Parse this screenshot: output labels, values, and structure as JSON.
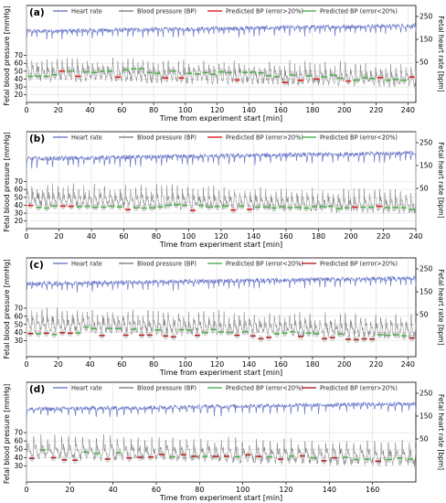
{
  "figure": {
    "legend": {
      "heart_rate": "Heart rate",
      "blood_pressure": "Blood pressure (BP)",
      "pred_gt20": "Predicted BP (error>20%)",
      "pred_lt20": "Predicted BP (error<20%)"
    },
    "colors": {
      "heart_rate": "#6a79c8",
      "blood_pressure": "#7f7f7f",
      "pred_gt20": "#e41a1c",
      "pred_lt20": "#4daf4a",
      "pred_dark_red": "#b22222",
      "error_box": "#c8c8c8"
    }
  },
  "chart_data": [
    {
      "panel_label": "(a)",
      "type": "line",
      "xlabel": "Time from experiment start [min]",
      "ylabel_left": "Fetal blood pressure [mmHg]",
      "ylabel_right": "Fetal heart rate [bpm]",
      "xlim": [
        0,
        245
      ],
      "xticks": [
        0,
        20,
        40,
        60,
        80,
        100,
        120,
        140,
        160,
        180,
        200,
        220,
        240
      ],
      "yticks_left": [
        20,
        30,
        40,
        50,
        60,
        70
      ],
      "yticks_right": [
        50,
        150,
        250
      ],
      "legend_order": [
        "heart_rate",
        "blood_pressure",
        "pred_gt20",
        "pred_lt20"
      ],
      "grid": true,
      "series": [
        {
          "name": "Heart rate",
          "approx_range": [
            150,
            260
          ]
        },
        {
          "name": "Blood pressure (BP)",
          "approx_range": [
            25,
            70
          ]
        },
        {
          "name": "Predicted BP (error>20%)",
          "approx_values": [
            50,
            45,
            42,
            40,
            38,
            35,
            40,
            38,
            42
          ]
        },
        {
          "name": "Predicted BP (error<20%)",
          "approx_values": [
            45,
            50,
            52,
            49,
            48,
            47,
            44,
            43,
            40,
            38
          ]
        }
      ]
    },
    {
      "panel_label": "(b)",
      "type": "line",
      "xlabel": "Time from experiment start [min]",
      "ylabel_left": "Fetal blood pressure [mmHg]",
      "ylabel_right": "Fetal heart rate [bpm]",
      "xlim": [
        0,
        240
      ],
      "xticks": [
        0,
        20,
        40,
        60,
        80,
        100,
        120,
        140,
        160,
        180,
        200,
        220,
        240
      ],
      "yticks_left": [
        20,
        30,
        40,
        50,
        60,
        70
      ],
      "yticks_right": [
        50,
        150,
        250
      ],
      "legend_order": [
        "heart_rate",
        "blood_pressure",
        "pred_gt20",
        "pred_lt20"
      ],
      "grid": true,
      "series": [
        {
          "name": "Heart rate",
          "approx_range": [
            150,
            250
          ]
        },
        {
          "name": "Blood pressure (BP)",
          "approx_range": [
            30,
            65
          ]
        },
        {
          "name": "Predicted BP (error>20%)",
          "approx_values": [
            40,
            36,
            35,
            36,
            38
          ]
        },
        {
          "name": "Predicted BP (error<20%)",
          "approx_values": [
            37,
            38,
            38,
            39,
            38,
            38,
            37,
            36
          ]
        }
      ]
    },
    {
      "panel_label": "(c)",
      "type": "line",
      "xlabel": "Time from experiment start [min]",
      "ylabel_left": "Fetal blood pressure [mmHg]",
      "ylabel_right": "Fetal heart rate [bpm]",
      "xlim": [
        0,
        245
      ],
      "xticks": [
        0,
        20,
        40,
        60,
        80,
        100,
        120,
        140,
        160,
        180,
        200,
        220,
        240
      ],
      "yticks_left": [
        30,
        40,
        50,
        60,
        70
      ],
      "yticks_right": [
        50,
        150,
        250
      ],
      "legend_order": [
        "heart_rate",
        "blood_pressure",
        "pred_lt20",
        "pred_gt20"
      ],
      "grid": true,
      "series": [
        {
          "name": "Heart rate",
          "approx_range": [
            150,
            260
          ]
        },
        {
          "name": "Blood pressure (BP)",
          "approx_range": [
            25,
            75
          ]
        },
        {
          "name": "Predicted BP (error<20%)",
          "approx_values": [
            38,
            45,
            44,
            42,
            40,
            40,
            38
          ]
        },
        {
          "name": "Predicted BP (error>20%)",
          "approx_values": [
            38,
            37,
            35,
            35,
            34,
            33,
            33
          ]
        }
      ]
    },
    {
      "panel_label": "(d)",
      "type": "line",
      "xlabel": "Time from experiment start [min]",
      "ylabel_left": "Fetal blood pressure [mmHg]",
      "ylabel_right": "Fetal heart rate [bpm]",
      "xlim": [
        0,
        180
      ],
      "xticks": [
        0,
        20,
        40,
        60,
        80,
        100,
        120,
        140,
        160
      ],
      "yticks_left": [
        30,
        40,
        50,
        60,
        70
      ],
      "yticks_right": [
        50,
        150,
        250
      ],
      "legend_order": [
        "heart_rate",
        "blood_pressure",
        "pred_lt20",
        "pred_gt20"
      ],
      "grid": true,
      "series": [
        {
          "name": "Heart rate",
          "approx_range": [
            150,
            250
          ]
        },
        {
          "name": "Blood pressure (BP)",
          "approx_range": [
            25,
            70
          ]
        },
        {
          "name": "Predicted BP (error<20%)",
          "approx_values": [
            48,
            45,
            42,
            41,
            40,
            38
          ]
        },
        {
          "name": "Predicted BP (error>20%)",
          "approx_values": [
            38,
            40,
            42,
            42,
            40,
            38,
            36
          ]
        }
      ]
    }
  ]
}
